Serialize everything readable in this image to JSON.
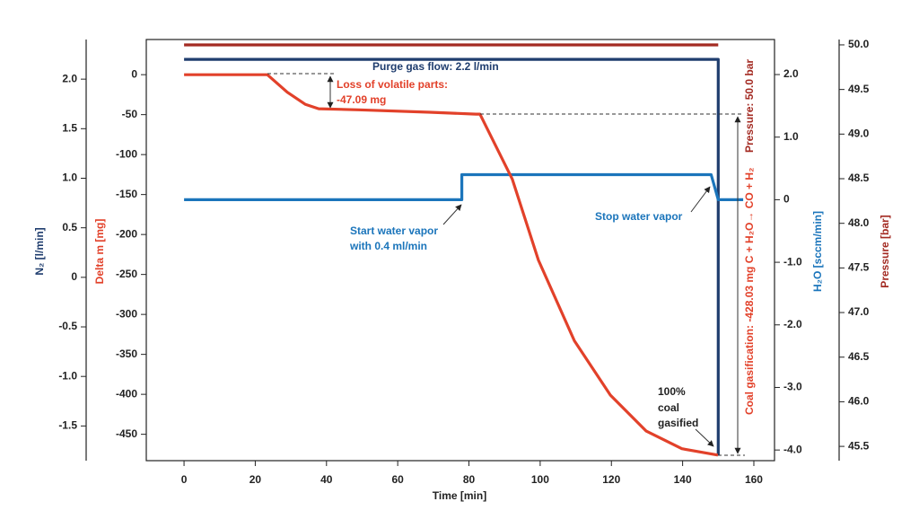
{
  "chart_data": {
    "type": "line",
    "xlabel": "Time [min]",
    "xlim": [
      -10.6,
      165.8
    ],
    "xticks": [
      0,
      20,
      40,
      60,
      80,
      100,
      120,
      140,
      160
    ],
    "ylabel": "Delta m [mg]",
    "ylim": [
      -483,
      44
    ],
    "yticks": [
      0,
      -50,
      -100,
      -150,
      -200,
      -250,
      -300,
      -350,
      -400,
      -450
    ],
    "y2label": "H₂O [sccm/min]",
    "y2lim": [
      -4.17,
      2.56
    ],
    "y2ticks": [
      {
        "value": 2,
        "label": "2.0"
      },
      {
        "value": 1,
        "label": "1.0"
      },
      0,
      {
        "value": -1,
        "label": "-1.0"
      },
      {
        "value": -2,
        "label": "-2.0"
      },
      {
        "value": -3,
        "label": "-3.0"
      },
      {
        "value": -4,
        "label": "-4.0"
      }
    ],
    "y3label": "N₂ [l/min]",
    "y3lim": [
      -1.85,
      2.4
    ],
    "y3ticks": [
      {
        "value": 2,
        "label": "2.0"
      },
      1.5,
      {
        "value": 1,
        "label": "1.0"
      },
      0.5,
      0,
      -0.5,
      {
        "value": -1,
        "label": "-1.0"
      },
      -1.5
    ],
    "y4label": "Pressure [bar]",
    "y4lim": [
      45.34,
      50.06
    ],
    "y4ticks": [
      {
        "value": 50,
        "label": "50.0"
      },
      49.5,
      {
        "value": 49,
        "label": "49.0"
      },
      48.5,
      {
        "value": 48,
        "label": "48.0"
      },
      47.5,
      {
        "value": 47,
        "label": "47.0"
      },
      46.5,
      {
        "value": 46,
        "label": "46.0"
      },
      45.5
    ],
    "series": [
      {
        "name": "Pressure",
        "axis": "y4",
        "color": "#a32a22",
        "x": [
          0,
          150
        ],
        "values": [
          50.0,
          50.0
        ]
      },
      {
        "name": "N₂",
        "axis": "y3",
        "color": "#1f3d6e",
        "x": [
          0,
          150,
          150
        ],
        "values": [
          2.2,
          2.2,
          -1.8
        ]
      },
      {
        "name": "H₂O",
        "axis": "y2",
        "color": "#1b75bb",
        "x": [
          0,
          78,
          78,
          148,
          150,
          157
        ],
        "values": [
          0,
          0,
          0.4,
          0.4,
          0,
          0
        ]
      },
      {
        "name": "Delta m",
        "axis": "y",
        "color": "#e2412a",
        "x": [
          0,
          23.4,
          29,
          34,
          37.8,
          49,
          69,
          82,
          83.1,
          92.2,
          99.5,
          109.6,
          119.7,
          129.8,
          139.8,
          149.9
        ],
        "values": [
          0,
          0,
          -22,
          -37,
          -42.6,
          -44,
          -47,
          -49.4,
          -49.4,
          -131,
          -232,
          -333,
          -401,
          -446,
          -468,
          -476
        ]
      }
    ],
    "annotations": [
      [
        "Purge gas flow: 2.2 l/min"
      ],
      [
        "Loss of volatile parts:",
        "-47.09 mg"
      ],
      [
        "Start water vapor",
        "with 0.4 ml/min"
      ],
      [
        "Stop water vapor"
      ],
      [
        "100%",
        "coal",
        "gasified"
      ],
      [
        "Coal gasification: -428.03 mg  C + H₂O→ CO + H₂",
        "Pressure: 50.0 bar"
      ]
    ]
  }
}
